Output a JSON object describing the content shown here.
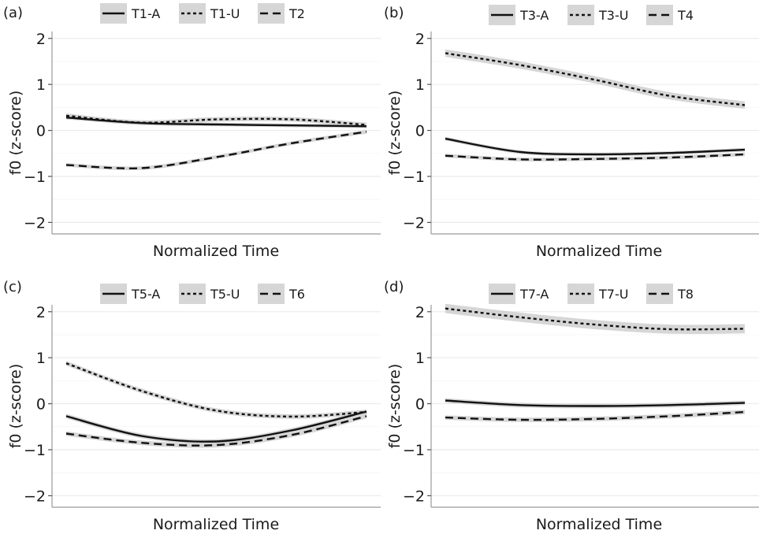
{
  "chart_data": [
    {
      "type": "line",
      "panel_label": "(a)",
      "xlabel": "Normalized Time",
      "ylabel": "f0 (z-score)",
      "ylim": [
        -2.25,
        2.15
      ],
      "yticks": [
        "-2",
        "-1",
        "0",
        "1",
        "2"
      ],
      "grid": true,
      "legend_position": "top",
      "x": [
        0,
        0.25,
        0.5,
        0.75,
        1
      ],
      "series": [
        {
          "name": "T1-A",
          "style": "solid",
          "values": [
            0.28,
            0.16,
            0.13,
            0.11,
            0.09
          ],
          "ci": 0.04
        },
        {
          "name": "T1-U",
          "style": "dotted",
          "values": [
            0.32,
            0.17,
            0.24,
            0.24,
            0.12
          ],
          "ci": 0.05
        },
        {
          "name": "T2",
          "style": "dashed",
          "values": [
            -0.75,
            -0.82,
            -0.58,
            -0.28,
            -0.03
          ],
          "ci": 0.04
        }
      ]
    },
    {
      "type": "line",
      "panel_label": "(b)",
      "xlabel": "Normalized Time",
      "ylabel": "f0 (z-score)",
      "ylim": [
        -2.25,
        2.15
      ],
      "yticks": [
        "-2",
        "-1",
        "0",
        "1",
        "2"
      ],
      "grid": true,
      "legend_position": "top",
      "x": [
        0,
        0.25,
        0.5,
        0.75,
        1
      ],
      "series": [
        {
          "name": "T3-A",
          "style": "solid",
          "values": [
            -0.18,
            -0.47,
            -0.52,
            -0.49,
            -0.42
          ],
          "ci": 0.04
        },
        {
          "name": "T3-U",
          "style": "dotted",
          "values": [
            1.68,
            1.42,
            1.1,
            0.75,
            0.55
          ],
          "ci": 0.08
        },
        {
          "name": "T4",
          "style": "dashed",
          "values": [
            -0.55,
            -0.63,
            -0.62,
            -0.59,
            -0.52
          ],
          "ci": 0.04
        }
      ]
    },
    {
      "type": "line",
      "panel_label": "(c)",
      "xlabel": "Normalized Time",
      "ylabel": "f0 (z-score)",
      "ylim": [
        -2.25,
        2.15
      ],
      "yticks": [
        "-2",
        "-1",
        "0",
        "1",
        "2"
      ],
      "grid": true,
      "legend_position": "top",
      "x": [
        0,
        0.25,
        0.5,
        0.75,
        1
      ],
      "series": [
        {
          "name": "T5-A",
          "style": "solid",
          "values": [
            -0.27,
            -0.7,
            -0.82,
            -0.58,
            -0.17
          ],
          "ci": 0.05
        },
        {
          "name": "T5-U",
          "style": "dotted",
          "values": [
            0.88,
            0.28,
            -0.15,
            -0.28,
            -0.18
          ],
          "ci": 0.05
        },
        {
          "name": "T6",
          "style": "dashed",
          "values": [
            -0.65,
            -0.85,
            -0.9,
            -0.68,
            -0.27
          ],
          "ci": 0.05
        }
      ]
    },
    {
      "type": "line",
      "panel_label": "(d)",
      "xlabel": "Normalized Time",
      "ylabel": "f0 (z-score)",
      "ylim": [
        -2.25,
        2.15
      ],
      "yticks": [
        "-2",
        "-1",
        "0",
        "1",
        "2"
      ],
      "grid": true,
      "legend_position": "top",
      "x": [
        0,
        0.25,
        0.5,
        0.75,
        1
      ],
      "series": [
        {
          "name": "T7-A",
          "style": "solid",
          "values": [
            0.07,
            -0.03,
            -0.05,
            -0.03,
            0.02
          ],
          "ci": 0.05
        },
        {
          "name": "T7-U",
          "style": "dotted",
          "values": [
            2.07,
            1.88,
            1.72,
            1.62,
            1.63
          ],
          "ci": 0.1
        },
        {
          "name": "T8",
          "style": "dashed",
          "values": [
            -0.3,
            -0.35,
            -0.33,
            -0.27,
            -0.18
          ],
          "ci": 0.05
        }
      ]
    }
  ]
}
